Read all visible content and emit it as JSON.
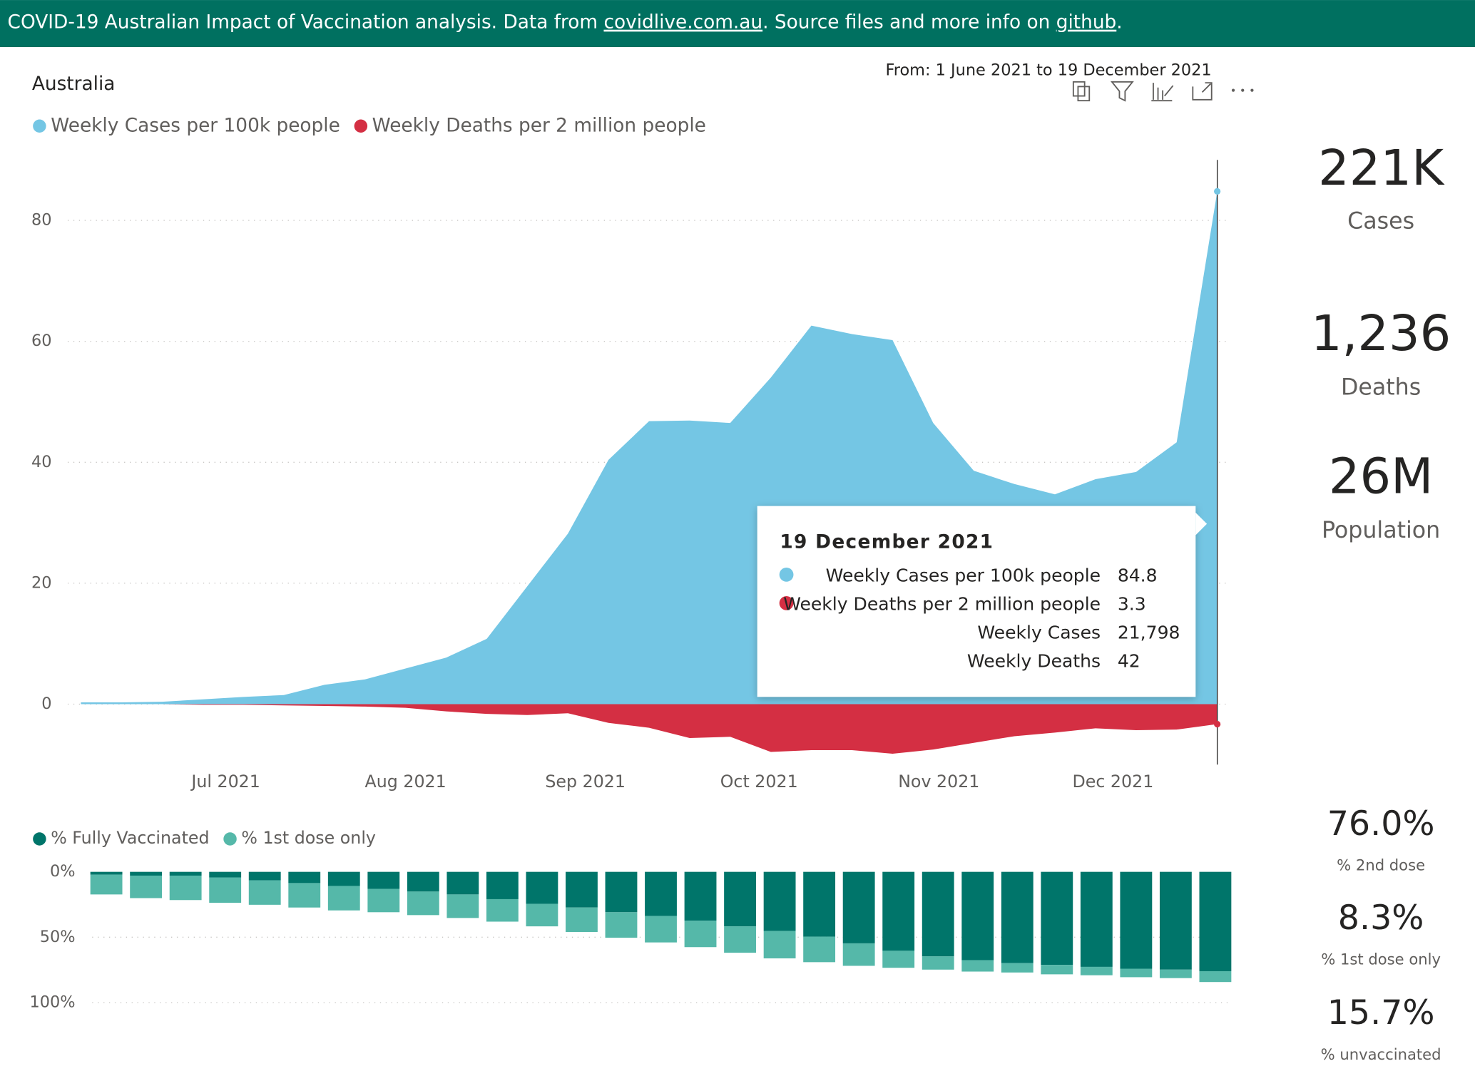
{
  "banner": {
    "parts": [
      "COVID-19 Australian Impact of Vaccination analysis. Data from ",
      "covidlive.com.au",
      ". Source files and more info on ",
      "github",
      "."
    ]
  },
  "chart_data": [
    {
      "type": "area",
      "title": "Australia",
      "subtitle": "From: 1 June 2021 to 19 December 2021",
      "x": [
        0,
        1,
        2,
        3,
        4,
        5,
        6,
        7,
        8,
        9,
        10,
        11,
        12,
        13,
        14,
        15,
        16,
        17,
        18,
        19,
        20,
        21,
        22,
        23,
        24,
        25,
        26,
        27,
        28
      ],
      "xlim": [
        0,
        28
      ],
      "xticks": [
        {
          "value": 3.571,
          "label": "Jul 2021"
        },
        {
          "value": 8,
          "label": "Aug 2021"
        },
        {
          "value": 12.43,
          "label": "Sep 2021"
        },
        {
          "value": 16.71,
          "label": "Oct 2021"
        },
        {
          "value": 21.14,
          "label": "Nov 2021"
        },
        {
          "value": 25.43,
          "label": "Dec 2021"
        }
      ],
      "ylim": [
        -10,
        90
      ],
      "yticks": [
        0,
        20,
        40,
        60,
        80
      ],
      "grid": true,
      "series": [
        {
          "name": "Weekly Cases per 100k people",
          "color": "#74c6e4",
          "values": [
            0.3,
            0.3,
            0.4,
            0.8,
            1.2,
            1.5,
            3.2,
            4.1,
            5.9,
            7.7,
            10.8,
            19.5,
            28.2,
            40.4,
            46.8,
            46.9,
            46.5,
            54,
            62.6,
            61.2,
            60.2,
            46.5,
            38.6,
            36.4,
            34.7,
            37.2,
            38.4,
            43.3,
            84.8
          ]
        },
        {
          "name": "Weekly Deaths per 2 million people",
          "color": "#d42f43",
          "values": [
            0,
            0,
            0,
            -0.1,
            -0.1,
            -0.2,
            -0.3,
            -0.4,
            -0.6,
            -1.2,
            -1.6,
            -1.8,
            -1.5,
            -3.1,
            -3.9,
            -5.6,
            -5.4,
            -7.9,
            -7.6,
            -7.6,
            -8.2,
            -7.5,
            -6.4,
            -5.3,
            -4.7,
            -4.0,
            -4.3,
            -4.2,
            -3.3
          ]
        }
      ]
    },
    {
      "type": "bar",
      "stacked": true,
      "y_reversed": true,
      "categories": [
        null,
        null,
        null,
        null,
        null,
        null,
        null,
        null,
        null,
        null,
        null,
        null,
        null,
        null,
        null,
        null,
        null,
        null,
        null,
        null,
        null,
        null,
        null,
        null,
        null,
        null,
        null,
        null,
        null
      ],
      "ylim": [
        0,
        100
      ],
      "yticks": [
        {
          "value": 0,
          "label": "0%"
        },
        {
          "value": 50,
          "label": "50%"
        },
        {
          "value": 100,
          "label": "100%"
        }
      ],
      "grid": true,
      "series": [
        {
          "name": "% Fully Vaccinated",
          "color": "#00756a",
          "values": [
            2.2,
            2.9,
            2.9,
            4.3,
            6.5,
            8.6,
            10.8,
            13.0,
            15.1,
            17.3,
            20.9,
            24.5,
            27.3,
            30.9,
            33.8,
            37.4,
            41.7,
            45.3,
            49.6,
            54.7,
            60.4,
            64.7,
            67.6,
            69.8,
            71.2,
            72.7,
            74.1,
            74.8,
            76.0
          ]
        },
        {
          "name": "% 1st dose only",
          "color": "#55b8a9",
          "values": [
            15.1,
            17.2,
            18.7,
            19.4,
            18.7,
            18.7,
            18.7,
            17.9,
            18.0,
            18.0,
            17.2,
            17.2,
            18.7,
            19.5,
            20.2,
            20.2,
            20.2,
            20.9,
            19.5,
            17.2,
            13.0,
            10.1,
            8.7,
            7.2,
            7.2,
            6.4,
            6.5,
            6.5,
            8.3
          ]
        }
      ]
    }
  ],
  "kpis": [
    {
      "value": "221K",
      "label": "Cases"
    },
    {
      "value": "1,236",
      "label": "Deaths"
    },
    {
      "value": "26M",
      "label": "Population"
    },
    {
      "value": "76.0%",
      "label": "% 2nd dose"
    },
    {
      "value": "8.3%",
      "label": "% 1st dose only"
    },
    {
      "value": "15.7%",
      "label": "% unvaccinated"
    }
  ],
  "tooltip": {
    "title": "19 December 2021",
    "rows": [
      {
        "label": "Weekly Cases per 100k people",
        "value": "84.8"
      },
      {
        "label": "Weekly Deaths per 2 million people",
        "value": "3.3"
      },
      {
        "label": "Weekly Cases",
        "value": "21,798"
      },
      {
        "label": "Weekly Deaths",
        "value": "42"
      }
    ]
  }
}
